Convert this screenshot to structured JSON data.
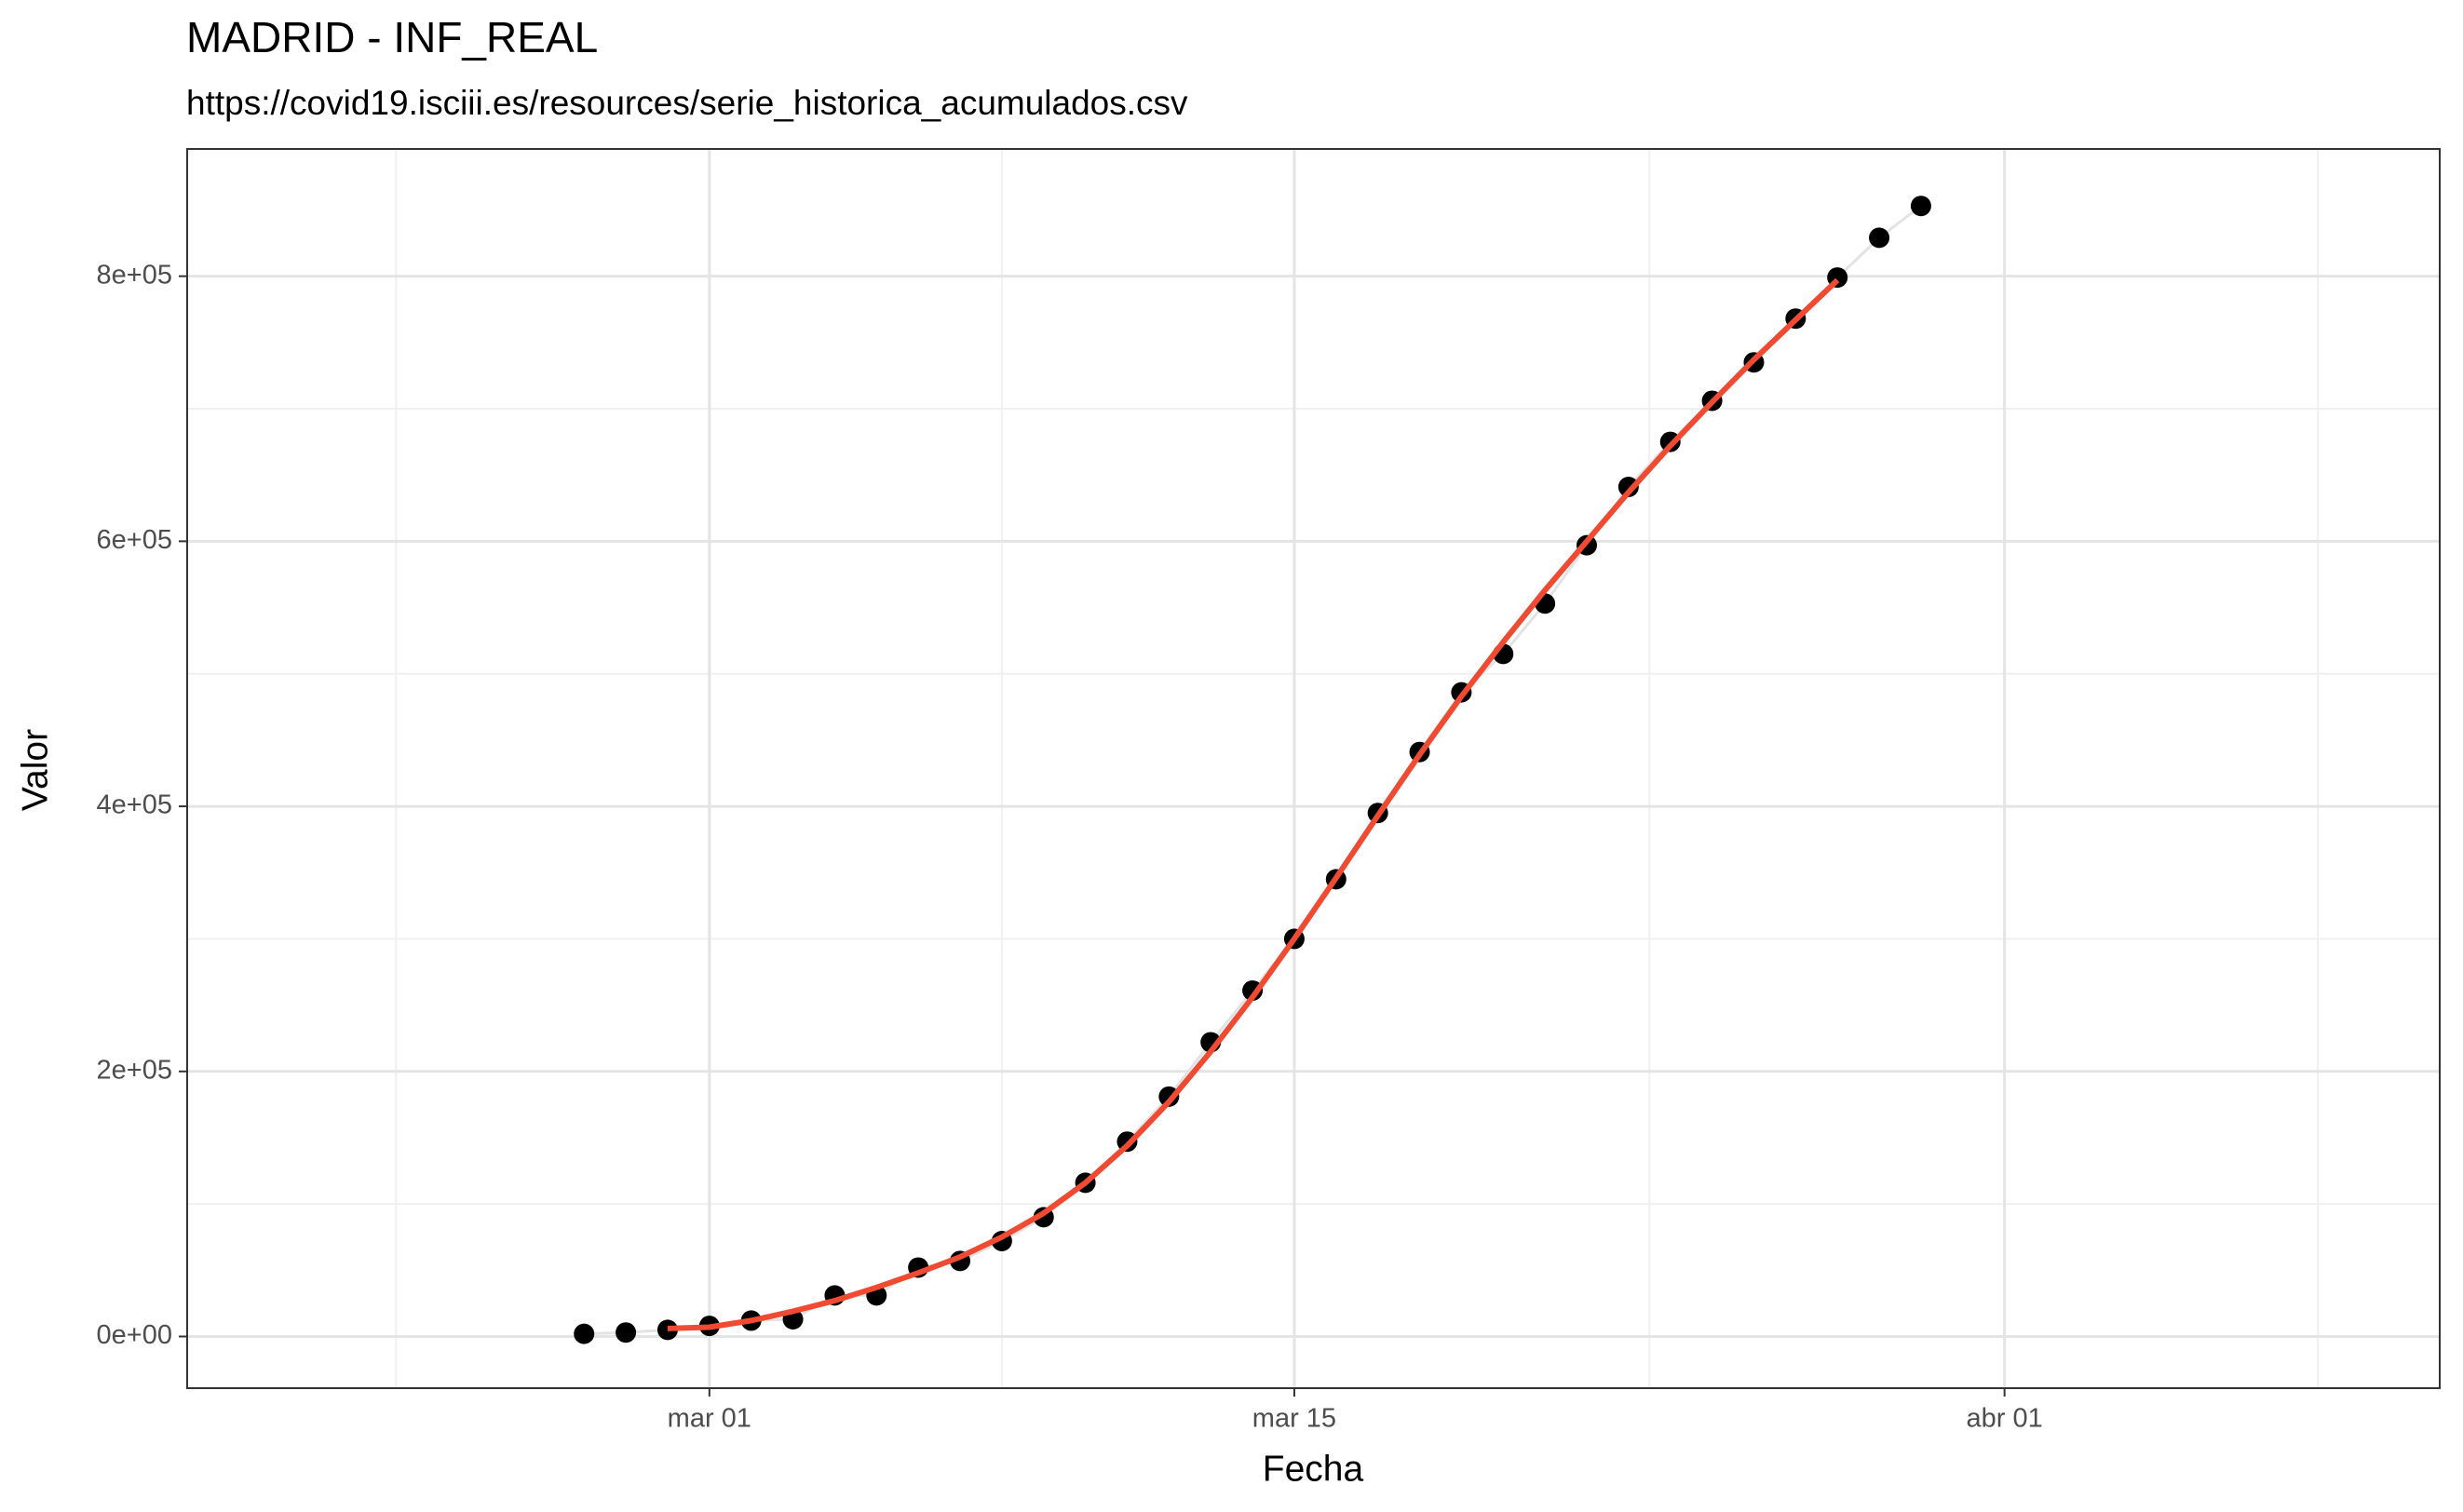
{
  "chart_data": {
    "type": "scatter",
    "title": "MADRID - INF_REAL",
    "subtitle": "https://covid19.isciii.es/resources/serie_historica_acumulados.csv",
    "xlabel": "Fecha",
    "ylabel": "Valor",
    "xlim": [
      "02-17T12:00",
      "04-11T10:00"
    ],
    "xticks": [
      {
        "value": "03-01",
        "label": "mar 01"
      },
      {
        "value": "03-15",
        "label": "mar 15"
      },
      {
        "value": "04-01",
        "label": "abr 01"
      }
    ],
    "xminorticks": [
      "02-22T12:00",
      "03-08",
      "03-23T12:00",
      "04-08T12:00"
    ],
    "ylim": [
      -39000,
      896000
    ],
    "yticks": [
      {
        "value": 0,
        "label": "0e+00"
      },
      {
        "value": 200000,
        "label": "2e+05"
      },
      {
        "value": 400000,
        "label": "4e+05"
      },
      {
        "value": 600000,
        "label": "6e+05"
      },
      {
        "value": 800000,
        "label": "8e+05"
      }
    ],
    "yminorticks": [
      100000,
      300000,
      500000,
      700000
    ],
    "grid": true,
    "series": [
      {
        "color": "#000000",
        "line_color": "#e3e3e3",
        "x": [
          "02-27",
          "02-28",
          "02-29",
          "03-01",
          "03-02",
          "03-03",
          "03-04",
          "03-05",
          "03-06",
          "03-07",
          "03-08",
          "03-09",
          "03-10",
          "03-11",
          "03-12",
          "03-13",
          "03-14",
          "03-15",
          "03-16",
          "03-17",
          "03-18",
          "03-19",
          "03-20",
          "03-21",
          "03-22",
          "03-23",
          "03-24",
          "03-25",
          "03-26",
          "03-27",
          "03-28",
          "03-29",
          "03-30"
        ],
        "values": [
          2000,
          3000,
          5000,
          8000,
          12000,
          13000,
          31000,
          31000,
          52000,
          57000,
          72000,
          90000,
          116000,
          147000,
          181000,
          222000,
          261000,
          300000,
          345000,
          395000,
          441000,
          486000,
          515000,
          553000,
          597000,
          641000,
          675000,
          706000,
          735000,
          768000,
          799000,
          829000,
          853000
        ]
      },
      {
        "color": "#f04a32",
        "x": [
          "02-29",
          "03-01",
          "03-02",
          "03-03",
          "03-04",
          "03-05",
          "03-06",
          "03-07",
          "03-08",
          "03-09",
          "03-10",
          "03-11",
          "03-12",
          "03-13",
          "03-14",
          "03-15",
          "03-16",
          "03-17",
          "03-18",
          "03-19",
          "03-20",
          "03-21",
          "03-22",
          "03-23",
          "03-24",
          "03-25",
          "03-26",
          "03-27",
          "03-28"
        ],
        "values": [
          6000,
          7000,
          12000,
          19000,
          27000,
          37000,
          48000,
          60000,
          75000,
          93000,
          116000,
          144000,
          177000,
          215000,
          256000,
          300000,
          346000,
          393000,
          439000,
          483000,
          524000,
          563000,
          600000,
          637000,
          672000,
          705000,
          737000,
          767000,
          797000
        ]
      }
    ]
  }
}
